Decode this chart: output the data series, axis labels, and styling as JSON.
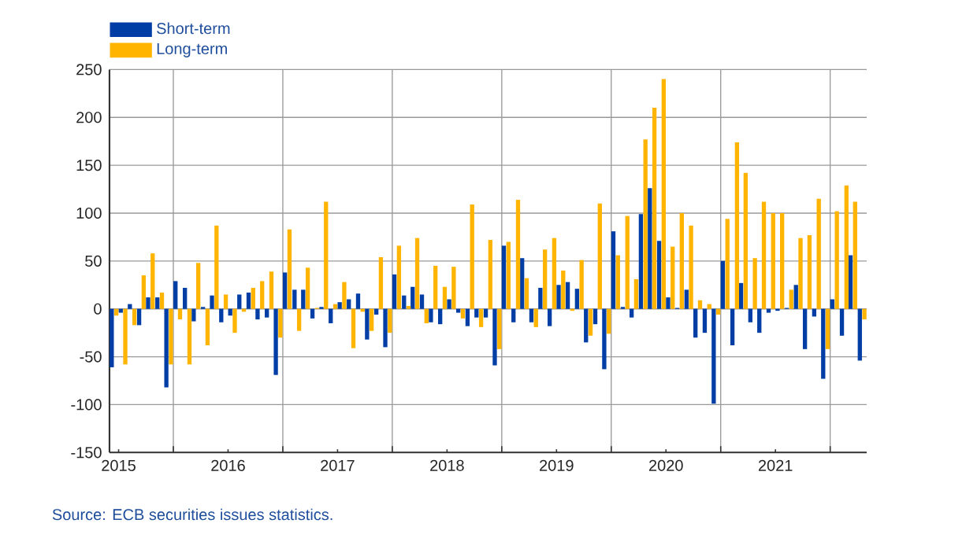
{
  "chart_data": {
    "type": "bar",
    "x": [
      "2015-06-16",
      "2015-07-16",
      "2015-08-16",
      "2015-09-16",
      "2015-10-16",
      "2015-11-16",
      "2015-12-16",
      "2016-01-16",
      "2016-02-16",
      "2016-03-16",
      "2016-04-16",
      "2016-05-16",
      "2016-06-16",
      "2016-07-16",
      "2016-08-16",
      "2016-09-16",
      "2016-10-16",
      "2016-11-16",
      "2016-12-16",
      "2017-01-16",
      "2017-02-16",
      "2017-03-16",
      "2017-04-16",
      "2017-05-16",
      "2017-06-16",
      "2017-07-16",
      "2017-08-16",
      "2017-09-16",
      "2017-10-16",
      "2017-11-16",
      "2017-12-16",
      "2018-01-16",
      "2018-02-16",
      "2018-03-16",
      "2018-04-16",
      "2018-05-16",
      "2018-06-16",
      "2018-07-16",
      "2018-08-16",
      "2018-09-16",
      "2018-10-16",
      "2018-11-16",
      "2018-12-16",
      "2019-01-16",
      "2019-02-16",
      "2019-03-16",
      "2019-04-16",
      "2019-05-16",
      "2019-06-16",
      "2019-07-16",
      "2019-08-16",
      "2019-09-16",
      "2019-10-16",
      "2019-11-16",
      "2019-12-16",
      "2020-01-16",
      "2020-02-16",
      "2020-03-16",
      "2020-04-16",
      "2020-05-16",
      "2020-06-16",
      "2020-07-16",
      "2020-08-16",
      "2020-09-16",
      "2020-10-16",
      "2020-11-16",
      "2020-12-16",
      "2021-01-16",
      "2021-02-16",
      "2021-03-16",
      "2021-04-16",
      "2021-05-16",
      "2021-06-16",
      "2021-07-16",
      "2021-08-16",
      "2021-09-16",
      "2021-10-16",
      "2021-11-16",
      "2021-12-16",
      "2022-01-16",
      "2022-02-16",
      "2022-03-16",
      "2022-04-16"
    ],
    "series": [
      {
        "name": "Short-term",
        "color": "#003da5",
        "values": [
          -61,
          -4,
          5,
          -17,
          12,
          12,
          -82,
          29,
          22,
          -13,
          2,
          14,
          -14,
          -7,
          15,
          17,
          -11,
          -9,
          -69,
          38,
          20,
          20,
          -10,
          2,
          -15,
          7,
          10,
          16,
          -32,
          -6,
          -40,
          36,
          14,
          23,
          15,
          -14,
          -16,
          10,
          -4,
          -18,
          -9,
          -9,
          -59,
          66,
          -14,
          53,
          -14,
          22,
          -18,
          25,
          28,
          21,
          -35,
          -16,
          -63,
          81,
          2,
          -9,
          99,
          126,
          71,
          12,
          1,
          20,
          -30,
          -25,
          -99,
          50,
          -38,
          27,
          -14,
          -25,
          -4,
          -2,
          1,
          25,
          -42,
          -8,
          -73,
          10,
          -28,
          56,
          -54
        ]
      },
      {
        "name": "Long-term",
        "color": "#ffb400",
        "values": [
          -7,
          -58,
          -17,
          35,
          58,
          17,
          -58,
          -11,
          -58,
          48,
          -38,
          87,
          15,
          -25,
          -3,
          22,
          29,
          39,
          -30,
          83,
          -23,
          43,
          1,
          112,
          5,
          28,
          -41,
          -3,
          -23,
          54,
          -25,
          66,
          3,
          74,
          -15,
          45,
          23,
          44,
          -10,
          109,
          -19,
          72,
          -42,
          70,
          114,
          32,
          -19,
          62,
          74,
          40,
          -2,
          51,
          -28,
          110,
          -26,
          56,
          97,
          31,
          177,
          210,
          240,
          65,
          100,
          87,
          9,
          5,
          -6,
          94,
          174,
          142,
          53,
          112,
          100,
          100,
          20,
          74,
          77,
          115,
          -42,
          102,
          129,
          112,
          -11
        ]
      }
    ],
    "xlim": [
      "2015-06",
      "2022-05"
    ],
    "xticks": [
      {
        "value": "2016-01",
        "label": null
      },
      {
        "value": "2017-01",
        "label": null
      },
      {
        "value": "2018-01",
        "label": null
      },
      {
        "value": "2019-01",
        "label": null
      },
      {
        "value": "2020-01",
        "label": null
      },
      {
        "value": "2021-01",
        "label": null
      },
      {
        "value": "2022-01",
        "label": null
      },
      {
        "value": "2015-07",
        "label": "2015"
      },
      {
        "value": "2016-07",
        "label": "2016"
      },
      {
        "value": "2017-07",
        "label": "2017"
      },
      {
        "value": "2018-07",
        "label": "2018"
      },
      {
        "value": "2019-07",
        "label": "2019"
      },
      {
        "value": "2020-07",
        "label": "2020"
      },
      {
        "value": "2021-07",
        "label": "2021"
      }
    ],
    "ylim": [
      -150,
      250
    ],
    "yticks": [
      -150,
      -100,
      -50,
      0,
      50,
      100,
      150,
      200,
      250
    ],
    "grid": true,
    "legend": "top left",
    "annotations": [
      "Source: ECB securities issues statistics."
    ]
  }
}
